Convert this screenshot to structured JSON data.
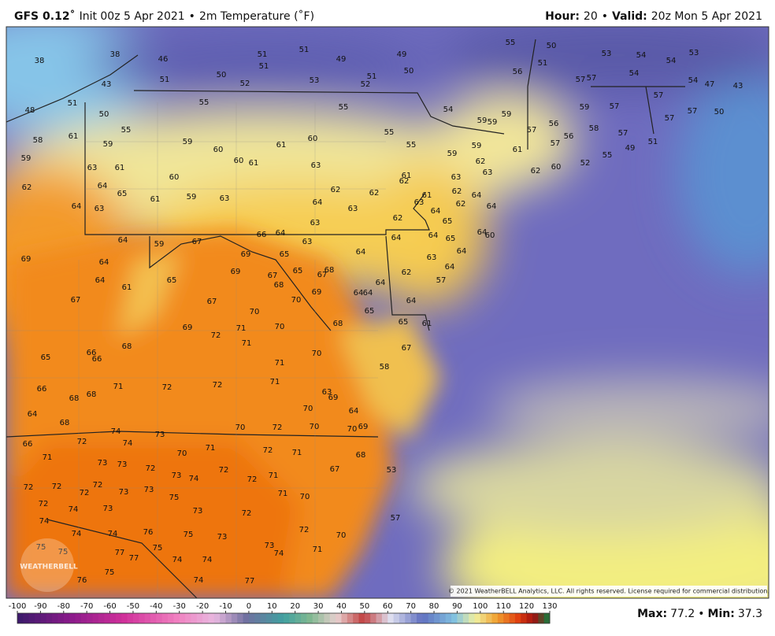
{
  "header": {
    "model": "GFS 0.12˚",
    "init": "Init 00z 5 Apr 2021",
    "bullet": "•",
    "variable": "2m Temperature (˚F)",
    "hour_label": "Hour:",
    "hour": 20,
    "valid_label": "Valid:",
    "valid": "20z Mon 5 Apr 2021"
  },
  "map": {
    "copyright": "© 2021 WeatherBELL Analytics, LLC. All rights reserved. License required for commercial distribution.",
    "logo": "WEATHERBELL",
    "station_values": [
      38,
      38,
      46,
      51,
      51,
      49,
      49,
      55,
      50,
      53,
      54,
      54,
      53,
      51,
      51,
      50,
      52,
      53,
      52,
      51,
      50,
      56,
      51,
      57,
      57,
      54,
      54,
      47,
      43,
      43,
      51,
      50,
      48,
      55,
      55,
      54,
      59,
      59,
      59,
      57,
      56,
      59,
      57,
      57,
      57,
      50,
      57,
      58,
      61,
      59,
      55,
      59,
      60,
      61,
      60,
      55,
      55,
      59,
      59,
      61,
      57,
      56,
      58,
      57,
      49,
      51,
      59,
      63,
      61,
      60,
      60,
      61,
      63,
      61,
      62,
      63,
      62,
      63,
      62,
      60,
      52,
      55,
      62,
      64,
      65,
      61,
      59,
      63,
      62,
      62,
      64,
      63,
      61,
      62,
      64,
      64,
      63,
      62,
      63,
      64,
      62,
      64,
      65,
      63,
      64,
      59,
      67,
      66,
      64,
      63,
      64,
      64,
      65,
      64,
      60,
      69,
      64,
      69,
      69,
      65,
      63,
      64,
      64,
      64,
      61,
      65,
      67,
      68,
      65,
      67,
      68,
      64,
      62,
      64,
      57,
      67,
      67,
      70,
      69,
      64,
      64,
      65,
      64,
      70,
      69,
      71,
      70,
      68,
      65,
      61,
      68,
      72,
      71,
      66,
      66,
      65,
      70,
      58,
      71,
      67,
      71,
      72,
      72,
      71,
      66,
      68,
      68,
      63,
      69,
      64,
      70,
      64,
      68,
      74,
      73,
      70,
      72,
      70,
      70,
      69,
      66,
      72,
      74,
      70,
      71,
      72,
      71,
      68,
      71,
      73,
      73,
      72,
      73,
      74,
      72,
      72,
      71,
      67,
      72,
      72,
      72,
      72,
      73,
      73,
      75,
      71,
      70,
      53,
      72,
      74,
      73,
      73,
      72,
      74,
      74,
      74,
      76,
      75,
      73,
      72,
      57,
      75,
      75,
      77,
      77,
      75,
      74,
      74,
      73,
      74,
      71,
      70,
      76,
      75,
      74,
      77
    ]
  },
  "colorbar": {
    "ticks": [
      -100,
      -90,
      -80,
      -70,
      -60,
      -50,
      -40,
      -30,
      -20,
      -10,
      0,
      10,
      20,
      30,
      40,
      50,
      60,
      70,
      80,
      90,
      100,
      110,
      120,
      130
    ]
  },
  "footer": {
    "max_label": "Max:",
    "max": 77.2,
    "bullet": "•",
    "min_label": "Min:",
    "min": 37.3
  }
}
